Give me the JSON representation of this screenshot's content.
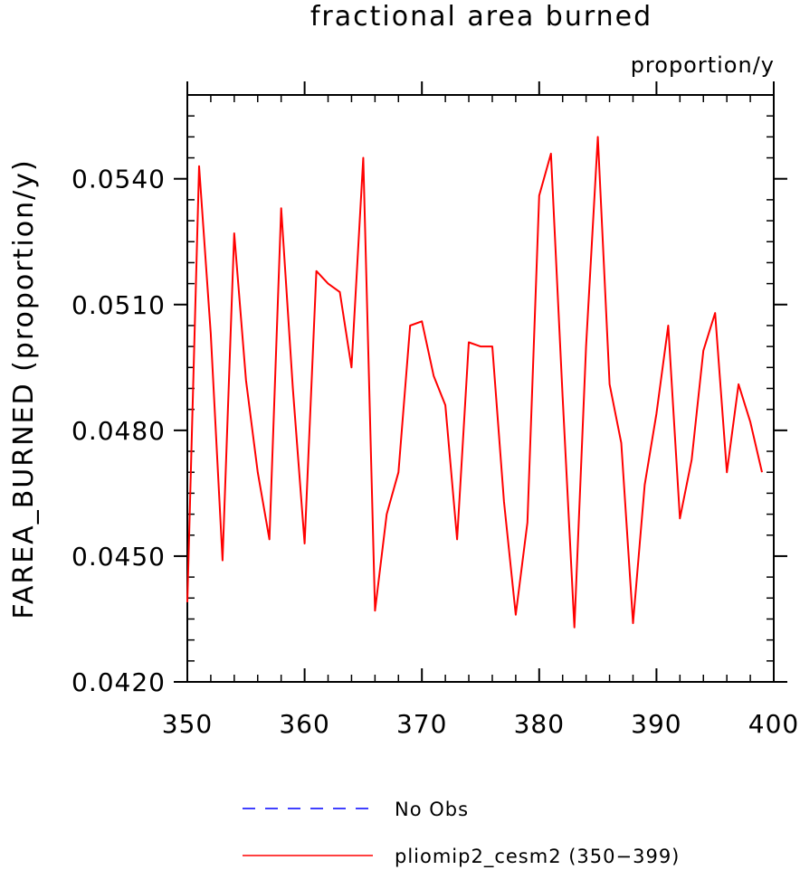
{
  "chart_data": {
    "type": "line",
    "title": "fractional area burned",
    "units_label": "proportion/y",
    "ylabel": "FAREA_BURNED   (proportion/y)",
    "xlabel": "",
    "xlim": [
      350,
      400
    ],
    "ylim": [
      0.042,
      0.056
    ],
    "x_ticks": [
      350,
      360,
      370,
      380,
      390,
      400
    ],
    "x_tick_labels": [
      "350",
      "360",
      "370",
      "380",
      "390",
      "400"
    ],
    "y_ticks": [
      0.042,
      0.045,
      0.048,
      0.051,
      0.054
    ],
    "y_tick_labels": [
      "0.0420",
      "0.0450",
      "0.0480",
      "0.0510",
      "0.0540"
    ],
    "x_minor_step": 2,
    "y_minor_step": 0.0005,
    "grid": false,
    "legend_position": "bottom",
    "legend": [
      {
        "label": "No Obs",
        "color": "#0000ff",
        "style": "dashed"
      },
      {
        "label": "pliomip2_cesm2 (350−399)",
        "color": "#ff0000",
        "style": "solid"
      }
    ],
    "series": [
      {
        "name": "pliomip2_cesm2 (350−399)",
        "color": "#ff0000",
        "x": [
          350,
          351,
          352,
          353,
          354,
          355,
          356,
          357,
          358,
          359,
          360,
          361,
          362,
          363,
          364,
          365,
          366,
          367,
          368,
          369,
          370,
          371,
          372,
          373,
          374,
          375,
          376,
          377,
          378,
          379,
          380,
          381,
          382,
          383,
          384,
          385,
          386,
          387,
          388,
          389,
          390,
          391,
          392,
          393,
          394,
          395,
          396,
          397,
          398,
          399
        ],
        "values": [
          0.0439,
          0.0543,
          0.0503,
          0.0449,
          0.0527,
          0.0492,
          0.047,
          0.0454,
          0.0533,
          0.049,
          0.0453,
          0.0518,
          0.0515,
          0.0513,
          0.0495,
          0.0545,
          0.0437,
          0.046,
          0.047,
          0.0505,
          0.0506,
          0.0493,
          0.0486,
          0.0454,
          0.0501,
          0.05,
          0.05,
          0.0463,
          0.0436,
          0.0458,
          0.0536,
          0.0546,
          0.0488,
          0.0433,
          0.05,
          0.055,
          0.0491,
          0.0477,
          0.0434,
          0.0467,
          0.0484,
          0.0505,
          0.0459,
          0.0473,
          0.0499,
          0.0508,
          0.047,
          0.0491,
          0.0482,
          0.047
        ]
      }
    ]
  }
}
